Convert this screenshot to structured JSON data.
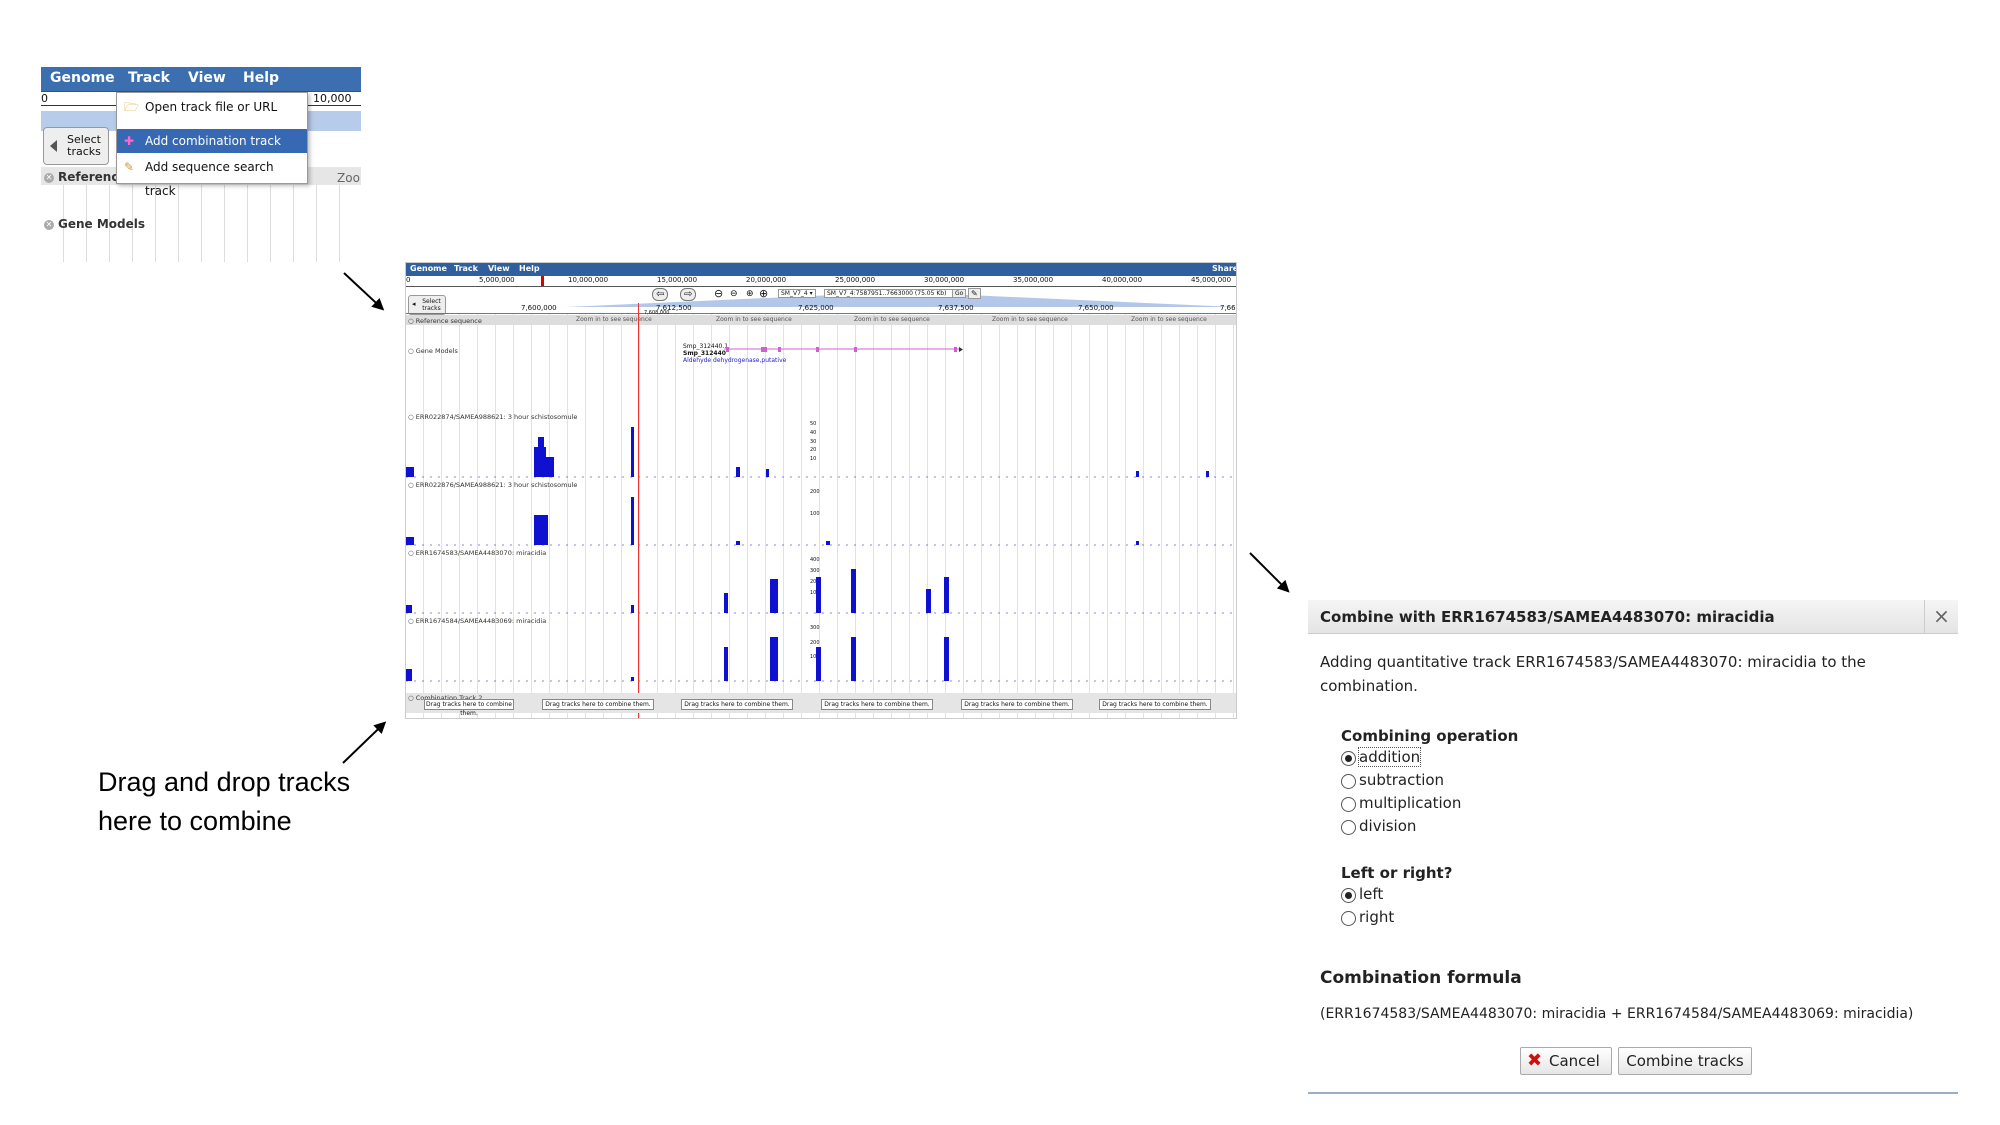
{
  "menu_panel": {
    "menubar": [
      "Genome",
      "Track",
      "View",
      "Help"
    ],
    "ruler_start": "0",
    "ruler_end": "10,000",
    "select_tracks": "Select tracks",
    "dropdown": [
      {
        "label": "Open track file or URL",
        "icon": "folder-icon"
      },
      {
        "label": "Add combination track",
        "icon": "combination-icon"
      },
      {
        "label": "Add sequence search track",
        "icon": "sequence-search-icon"
      }
    ],
    "tracks": [
      "Reference",
      "Gene Models"
    ],
    "zoom_text": "Zoo"
  },
  "browser_panel": {
    "menubar": [
      "Genome",
      "Track",
      "View",
      "Help"
    ],
    "share": "Share",
    "overview_ticks": [
      "0",
      "5,000,000",
      "10,000,000",
      "15,000,000",
      "20,000,000",
      "25,000,000",
      "30,000,000",
      "35,000,000",
      "40,000,000",
      "45,000,000"
    ],
    "location_ref": "SM_V7_4",
    "location_box": "SM_V7_4:7587951..7663000 (75.05 Kb)",
    "go": "Go",
    "select_tracks": "Select tracks",
    "detail_ticks": [
      "7,600,000",
      "7,612,500",
      "7,625,000",
      "7,637,500",
      "7,650,000",
      "7,66"
    ],
    "position_marker": "7,608,000",
    "reference_sequence": "Reference sequence",
    "zoom_in_text": "Zoom in to see sequence",
    "gene_models": "Gene Models",
    "gene_id": "Smp_312440.1",
    "gene_name": "Smp_312440",
    "gene_desc": "Aldehyde dehydrogenase,putative",
    "tracks": [
      {
        "label": "ERR022874/SAMEA988621: 3 hour schistosomule",
        "scale": [
          "50",
          "40",
          "30",
          "20",
          "10"
        ]
      },
      {
        "label": "ERR022876/SAMEA988621: 3 hour schistosomule",
        "scale": [
          "200",
          "100"
        ]
      },
      {
        "label": "ERR1674583/SAMEA4483070: miracidia",
        "scale": [
          "400",
          "300",
          "200",
          "100"
        ]
      },
      {
        "label": "ERR1674584/SAMEA4483069: miracidia",
        "scale": [
          "300",
          "200",
          "100"
        ]
      }
    ],
    "combination_track": "Combination Track 2",
    "drag_text": "Drag tracks here to combine them.",
    "coverage_color": "#1010d0"
  },
  "caption": "Drag and drop tracks here to combine",
  "dialog": {
    "title": "Combine with ERR1674583/SAMEA4483070: miracidia",
    "close": "×",
    "intro": "Adding quantitative track ERR1674583/SAMEA4483070: miracidia to the combination.",
    "operation_heading": "Combining operation",
    "operations": [
      "addition",
      "subtraction",
      "multiplication",
      "division"
    ],
    "selected_operation": "addition",
    "side_heading": "Left or right?",
    "sides": [
      "left",
      "right"
    ],
    "selected_side": "left",
    "formula_heading": "Combination formula",
    "formula": "(ERR1674583/SAMEA4483070: miracidia + ERR1674584/SAMEA4483069: miracidia)",
    "cancel": "Cancel",
    "combine": "Combine tracks",
    "cancel_icon_color": "#d01010"
  }
}
